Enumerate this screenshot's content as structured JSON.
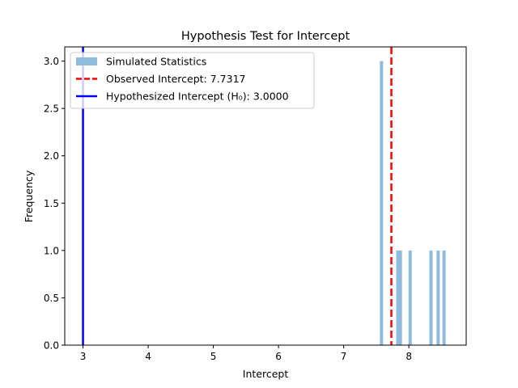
{
  "chart_data": {
    "type": "histogram",
    "title": "Hypothesis Test for Intercept",
    "xlabel": "Intercept",
    "ylabel": "Frequency",
    "xlim": [
      2.72,
      8.88
    ],
    "ylim": [
      0,
      3.15
    ],
    "xticks": [
      3,
      4,
      5,
      6,
      7,
      8
    ],
    "yticks": [
      0.0,
      0.5,
      1.0,
      1.5,
      2.0,
      2.5,
      3.0
    ],
    "xtick_labels": [
      "3",
      "4",
      "5",
      "6",
      "7",
      "8"
    ],
    "ytick_labels": [
      "0.0",
      "0.5",
      "1.0",
      "1.5",
      "2.0",
      "2.5",
      "3.0"
    ],
    "bin_width": 0.05,
    "bars": [
      {
        "x": 7.58,
        "count": 3
      },
      {
        "x": 7.83,
        "count": 1
      },
      {
        "x": 7.87,
        "count": 1
      },
      {
        "x": 8.02,
        "count": 1
      },
      {
        "x": 8.34,
        "count": 1
      },
      {
        "x": 8.45,
        "count": 1
      },
      {
        "x": 8.54,
        "count": 1
      }
    ],
    "observed_line": {
      "x": 7.7317,
      "color": "#ff0000",
      "style": "dashed"
    },
    "hypothesized_line": {
      "x": 3.0,
      "color": "#0000ff",
      "style": "solid"
    },
    "bar_color": "#8fbcdc",
    "grid": false,
    "legend_position": "upper-left",
    "legend": [
      {
        "label": "Simulated Statistics",
        "kind": "patch",
        "color": "#8fbcdc"
      },
      {
        "label": "Observed Intercept: 7.7317",
        "kind": "dashed-line",
        "color": "#ff0000"
      },
      {
        "label": "Hypothesized Intercept (H₀): 3.0000",
        "kind": "solid-line",
        "color": "#0000ff"
      }
    ]
  }
}
